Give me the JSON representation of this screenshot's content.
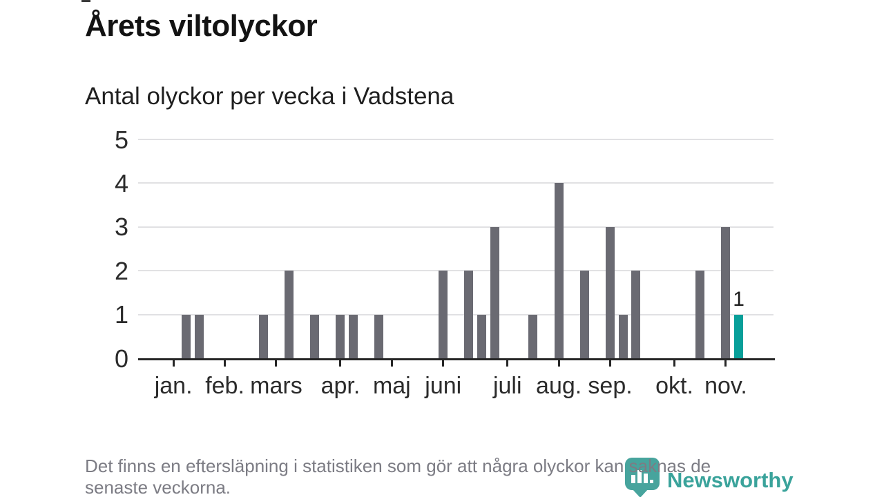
{
  "header": {
    "title": "Årets viltolyckor",
    "subtitle": "Antal olyckor per vecka i Vadstena"
  },
  "chart_data": {
    "type": "bar",
    "title": "Årets viltolyckor",
    "subtitle": "Antal olyckor per vecka i Vadstena",
    "x_description": "veckor (weekly slots from January to mid-November)",
    "weeks_total": 47,
    "ylim": [
      0,
      5
    ],
    "yticks": [
      0,
      1,
      2,
      3,
      4,
      5
    ],
    "grid": "horizontal",
    "legend": null,
    "bars": [
      {
        "week": 4,
        "value": 1
      },
      {
        "week": 5,
        "value": 1
      },
      {
        "week": 10,
        "value": 1
      },
      {
        "week": 12,
        "value": 2
      },
      {
        "week": 14,
        "value": 1
      },
      {
        "week": 16,
        "value": 1
      },
      {
        "week": 17,
        "value": 1
      },
      {
        "week": 19,
        "value": 1
      },
      {
        "week": 24,
        "value": 2
      },
      {
        "week": 26,
        "value": 2
      },
      {
        "week": 27,
        "value": 1
      },
      {
        "week": 28,
        "value": 3
      },
      {
        "week": 31,
        "value": 1
      },
      {
        "week": 33,
        "value": 4
      },
      {
        "week": 35,
        "value": 2
      },
      {
        "week": 37,
        "value": 3
      },
      {
        "week": 38,
        "value": 1
      },
      {
        "week": 39,
        "value": 2
      },
      {
        "week": 44,
        "value": 2
      },
      {
        "week": 46,
        "value": 3
      },
      {
        "week": 47,
        "value": 1,
        "highlighted": true,
        "label": "1"
      }
    ],
    "months": [
      {
        "label": "jan.",
        "week": 3
      },
      {
        "label": "feb.",
        "week": 7
      },
      {
        "label": "mars",
        "week": 11
      },
      {
        "label": "apr.",
        "week": 16
      },
      {
        "label": "maj",
        "week": 20
      },
      {
        "label": "juni",
        "week": 24
      },
      {
        "label": "juli",
        "week": 29
      },
      {
        "label": "aug.",
        "week": 33
      },
      {
        "label": "sep.",
        "week": 37
      },
      {
        "label": "okt.",
        "week": 42
      },
      {
        "label": "nov.",
        "week": 46
      }
    ],
    "colors": {
      "bar": "#6a6a72",
      "highlight": "#089f99",
      "grid": "#e1e1e3",
      "axis": "#262626",
      "label_text": "#2b2b2b",
      "value_label_text": "#1a1a1a"
    }
  },
  "footer": {
    "note_lines": [
      "Det finns en eftersläpning i statistiken som gör att några olyckor kan saknas de",
      "senaste veckorna."
    ],
    "brand": {
      "name": "Newsworthy",
      "color": "#3aa39b"
    }
  }
}
